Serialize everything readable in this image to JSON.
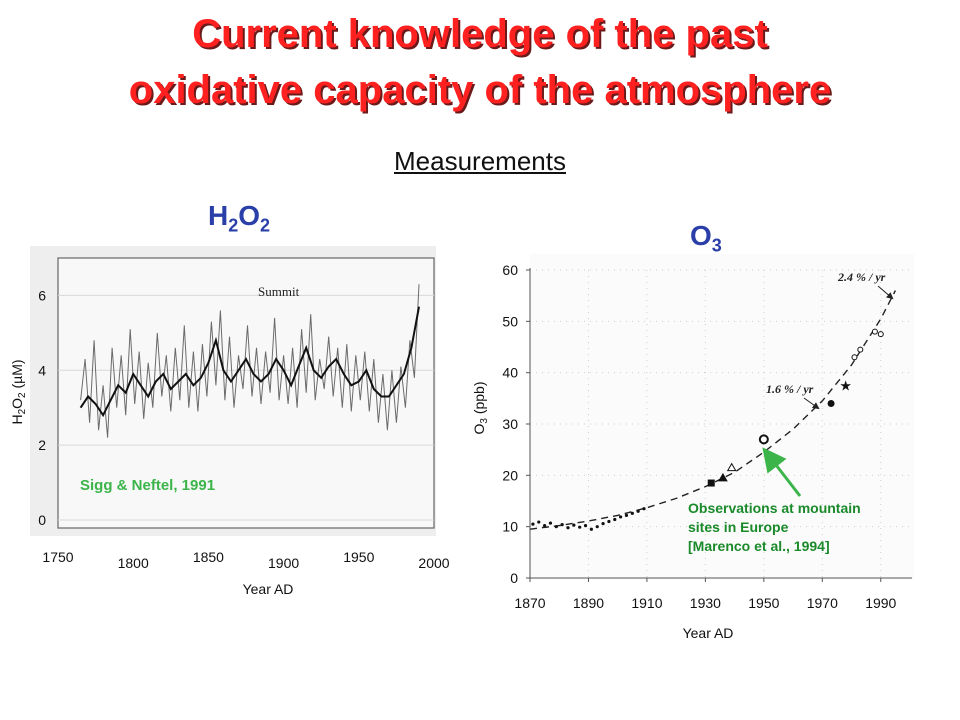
{
  "header": {
    "title_line1": "Current knowledge of the past",
    "title_line2": "oxidative capacity of the atmosphere",
    "subtitle": "Measurements"
  },
  "colors": {
    "title": "#ff2020",
    "species": "#2a3fa8",
    "annotation_green": "#3bb54a",
    "o3_note": "#1a8a2a"
  },
  "chart_data": [
    {
      "type": "line",
      "species_label": {
        "main": "H",
        "sub1": "2",
        "mid": "O",
        "sub2": "2"
      },
      "xlabel": "Year AD",
      "ylabel": {
        "pre": "H",
        "s1": "2",
        "mid": "O",
        "s2": "2",
        "post": " (µM)"
      },
      "xlim": [
        1750,
        2000
      ],
      "ylim": [
        0,
        7
      ],
      "x_ticks": [
        "1750",
        "1800",
        "1850",
        "1900",
        "1950",
        "2000"
      ],
      "y_ticks": [
        "0",
        "2",
        "4",
        "6"
      ],
      "annotations": {
        "location": "Summit",
        "source": "Sigg & Neftel, 1991"
      },
      "series": [
        {
          "style": "smoothed",
          "x": [
            1765,
            1770,
            1775,
            1780,
            1785,
            1790,
            1795,
            1800,
            1805,
            1810,
            1815,
            1820,
            1825,
            1830,
            1835,
            1840,
            1845,
            1850,
            1855,
            1860,
            1865,
            1870,
            1875,
            1880,
            1885,
            1890,
            1895,
            1900,
            1905,
            1910,
            1915,
            1920,
            1925,
            1930,
            1935,
            1940,
            1945,
            1950,
            1955,
            1960,
            1965,
            1970,
            1975,
            1980,
            1985,
            1990
          ],
          "values": [
            3.0,
            3.3,
            3.1,
            2.8,
            3.2,
            3.6,
            3.4,
            3.9,
            3.6,
            3.3,
            3.7,
            3.9,
            3.5,
            3.7,
            3.9,
            3.6,
            3.8,
            4.2,
            4.8,
            4.0,
            3.7,
            4.0,
            4.3,
            3.9,
            3.7,
            3.9,
            4.3,
            4.0,
            3.6,
            4.1,
            4.6,
            4.0,
            3.8,
            4.1,
            4.3,
            3.9,
            3.6,
            3.7,
            4.0,
            3.5,
            3.3,
            3.3,
            3.6,
            3.9,
            4.6,
            5.7
          ]
        },
        {
          "style": "raw",
          "x": [
            1765,
            1768,
            1771,
            1774,
            1777,
            1780,
            1783,
            1786,
            1789,
            1792,
            1795,
            1798,
            1801,
            1804,
            1807,
            1810,
            1813,
            1816,
            1819,
            1822,
            1825,
            1828,
            1831,
            1834,
            1837,
            1840,
            1843,
            1846,
            1849,
            1852,
            1855,
            1858,
            1861,
            1864,
            1867,
            1870,
            1873,
            1876,
            1879,
            1882,
            1885,
            1888,
            1891,
            1894,
            1897,
            1900,
            1903,
            1906,
            1909,
            1912,
            1915,
            1918,
            1921,
            1924,
            1927,
            1930,
            1933,
            1936,
            1939,
            1942,
            1945,
            1948,
            1951,
            1954,
            1957,
            1960,
            1963,
            1966,
            1969,
            1972,
            1975,
            1978,
            1981,
            1984,
            1987,
            1990
          ],
          "values": [
            3.2,
            4.3,
            2.6,
            4.8,
            2.4,
            3.6,
            2.2,
            4.6,
            3.0,
            4.4,
            2.8,
            5.1,
            3.1,
            4.5,
            2.7,
            4.2,
            3.0,
            5.0,
            3.3,
            4.4,
            2.9,
            4.6,
            3.2,
            5.2,
            3.0,
            4.5,
            2.9,
            4.7,
            3.3,
            5.3,
            3.6,
            5.6,
            3.2,
            4.9,
            3.0,
            4.4,
            3.5,
            5.2,
            3.3,
            4.6,
            3.1,
            4.5,
            3.4,
            5.4,
            3.2,
            4.4,
            3.1,
            4.6,
            3.0,
            5.1,
            3.4,
            5.5,
            3.2,
            4.3,
            3.5,
            4.9,
            3.3,
            4.6,
            3.0,
            4.7,
            2.9,
            4.4,
            3.2,
            4.5,
            2.9,
            4.3,
            2.6,
            3.9,
            2.4,
            4.0,
            2.6,
            4.1,
            3.0,
            4.8,
            3.8,
            6.3
          ]
        }
      ]
    },
    {
      "type": "scatter",
      "species_label": {
        "main": "O",
        "sub1": "3"
      },
      "xlabel": "Year AD",
      "ylabel": {
        "pre": "O",
        "s1": "3",
        "post": " (ppb)"
      },
      "xlim": [
        1870,
        2000
      ],
      "ylim": [
        0,
        60
      ],
      "x_ticks": [
        "1870",
        "1890",
        "1910",
        "1930",
        "1950",
        "1970",
        "1990"
      ],
      "y_ticks": [
        "0",
        "10",
        "20",
        "30",
        "40",
        "50",
        "60"
      ],
      "trend_labels": [
        "2.4 % / yr",
        "1.6 % / yr"
      ],
      "note": {
        "line1": "Observations at mountain",
        "line2": "sites in Europe",
        "line3": "[Marenco et al., 1994]"
      },
      "series": [
        {
          "style": "small-dots",
          "x": [
            1871,
            1873,
            1875,
            1877,
            1879,
            1881,
            1883,
            1885,
            1887,
            1889,
            1891,
            1893,
            1895,
            1897,
            1899,
            1901,
            1903,
            1905,
            1907,
            1909
          ],
          "values": [
            10.5,
            10.9,
            10.2,
            10.7,
            10.0,
            10.4,
            9.8,
            10.3,
            9.9,
            10.2,
            9.5,
            10.0,
            10.6,
            11.0,
            11.4,
            11.9,
            12.2,
            12.6,
            13.0,
            13.5
          ]
        },
        {
          "style": "square",
          "x": [
            1932
          ],
          "values": [
            18.5
          ]
        },
        {
          "style": "triangle",
          "x": [
            1936,
            1939
          ],
          "values": [
            19.5,
            21.5
          ]
        },
        {
          "style": "open-circle",
          "x": [
            1950
          ],
          "values": [
            27.0
          ]
        },
        {
          "style": "filled-circle",
          "x": [
            1973
          ],
          "values": [
            34.0
          ]
        },
        {
          "style": "star",
          "x": [
            1978
          ],
          "values": [
            37.5
          ]
        },
        {
          "style": "small-open-circles",
          "x": [
            1981,
            1983,
            1988,
            1990
          ],
          "values": [
            43.0,
            44.5,
            48.0,
            47.5
          ]
        }
      ],
      "trend": {
        "style": "dashed",
        "x": [
          1870,
          1880,
          1890,
          1900,
          1910,
          1920,
          1930,
          1940,
          1950,
          1960,
          1970,
          1980,
          1990,
          1995
        ],
        "values": [
          9.5,
          10.2,
          11.1,
          12.2,
          13.7,
          15.5,
          17.8,
          20.6,
          24.5,
          29.0,
          34.5,
          41.5,
          50.5,
          56.0
        ]
      }
    }
  ]
}
